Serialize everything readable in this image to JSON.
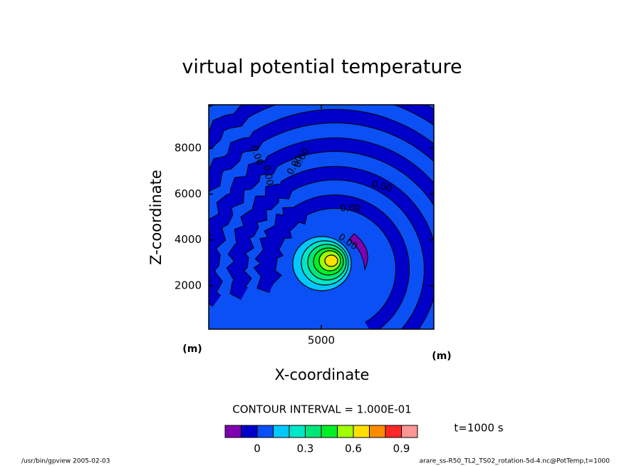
{
  "chart_data": {
    "type": "contour",
    "title": "virtual potential temperature",
    "x_label": "X-coordinate",
    "y_label": "Z-coordinate",
    "x_unit": "(m)",
    "y_unit": "(m)",
    "xlim": [
      100,
      9900
    ],
    "xticks": [
      5000
    ],
    "ylim": [
      100,
      9900
    ],
    "yticks": [
      2000,
      4000,
      6000,
      8000
    ],
    "contour_labels": [
      "0.00",
      "0.00",
      "0.00",
      "0.00",
      "0.00",
      "0.00",
      "0.00"
    ],
    "contour_interval_label": "CONTOUR INTERVAL = 1.000E-01",
    "time_label": "t=1000 s",
    "colorbar": {
      "levels": [
        -0.2,
        -0.1,
        0,
        0.1,
        0.2,
        0.3,
        0.4,
        0.5,
        0.6,
        0.7,
        0.8,
        0.9,
        1.0
      ],
      "colors": [
        "#8000b0",
        "#0000c8",
        "#0a50f5",
        "#00c8ff",
        "#00e6c8",
        "#00e678",
        "#00f028",
        "#a0ff00",
        "#ffe000",
        "#ff8c00",
        "#ff2828",
        "#ff9696"
      ],
      "ticks": [
        0,
        0.3,
        0.6,
        0.9
      ]
    },
    "footer_left": "/usr/bin/gpview  2005-02-03",
    "footer_right": "arare_ss-R50_TL2_TS02_rotation-5d-4.nc@PotTemp,t=1000"
  }
}
